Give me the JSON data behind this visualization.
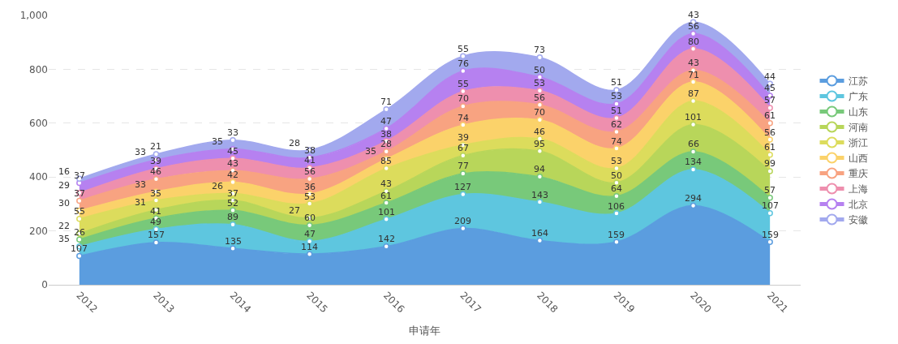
{
  "chart_data": {
    "type": "area",
    "stacked": true,
    "xlabel": "申请年",
    "categories": [
      "2012",
      "2013",
      "2014",
      "2015",
      "2016",
      "2017",
      "2018",
      "2019",
      "2020",
      "2021"
    ],
    "series": [
      {
        "name": "江苏",
        "color": "#5b9ddf",
        "values": [
          107,
          157,
          135,
          114,
          142,
          209,
          164,
          159,
          294,
          159
        ]
      },
      {
        "name": "广东",
        "color": "#5ec6df",
        "values": [
          35,
          49,
          89,
          47,
          101,
          127,
          143,
          106,
          134,
          107
        ]
      },
      {
        "name": "山东",
        "color": "#78c97a",
        "values": [
          26,
          41,
          52,
          60,
          61,
          77,
          94,
          64,
          66,
          57
        ]
      },
      {
        "name": "河南",
        "color": "#b8d65a",
        "values": [
          22,
          31,
          37,
          27,
          43,
          67,
          95,
          50,
          101,
          99
        ]
      },
      {
        "name": "浙江",
        "color": "#dcdc5c",
        "values": [
          55,
          35,
          26,
          53,
          85,
          39,
          46,
          53,
          87,
          61
        ]
      },
      {
        "name": "山西",
        "color": "#fbd26a",
        "values": [
          30,
          33,
          42,
          36,
          35,
          74,
          70,
          74,
          71,
          56
        ]
      },
      {
        "name": "重庆",
        "color": "#f8a381",
        "values": [
          37,
          46,
          43,
          56,
          28,
          70,
          56,
          62,
          43,
          61
        ]
      },
      {
        "name": "上海",
        "color": "#ee8fae",
        "values": [
          29,
          39,
          45,
          41,
          38,
          55,
          53,
          51,
          80,
          57
        ]
      },
      {
        "name": "北京",
        "color": "#b681f0",
        "values": [
          37,
          33,
          35,
          38,
          47,
          76,
          50,
          53,
          56,
          45
        ]
      },
      {
        "name": "安徽",
        "color": "#a2a9ee",
        "values": [
          16,
          21,
          33,
          28,
          71,
          55,
          73,
          51,
          43,
          44
        ]
      }
    ],
    "ylim": [
      0,
      1000
    ],
    "yticks": [
      0,
      200,
      400,
      600,
      800,
      {
        "value": 1000,
        "label": "1,000"
      }
    ],
    "grid": "y",
    "legend": "right",
    "marker": "circle",
    "data_labels": true
  }
}
